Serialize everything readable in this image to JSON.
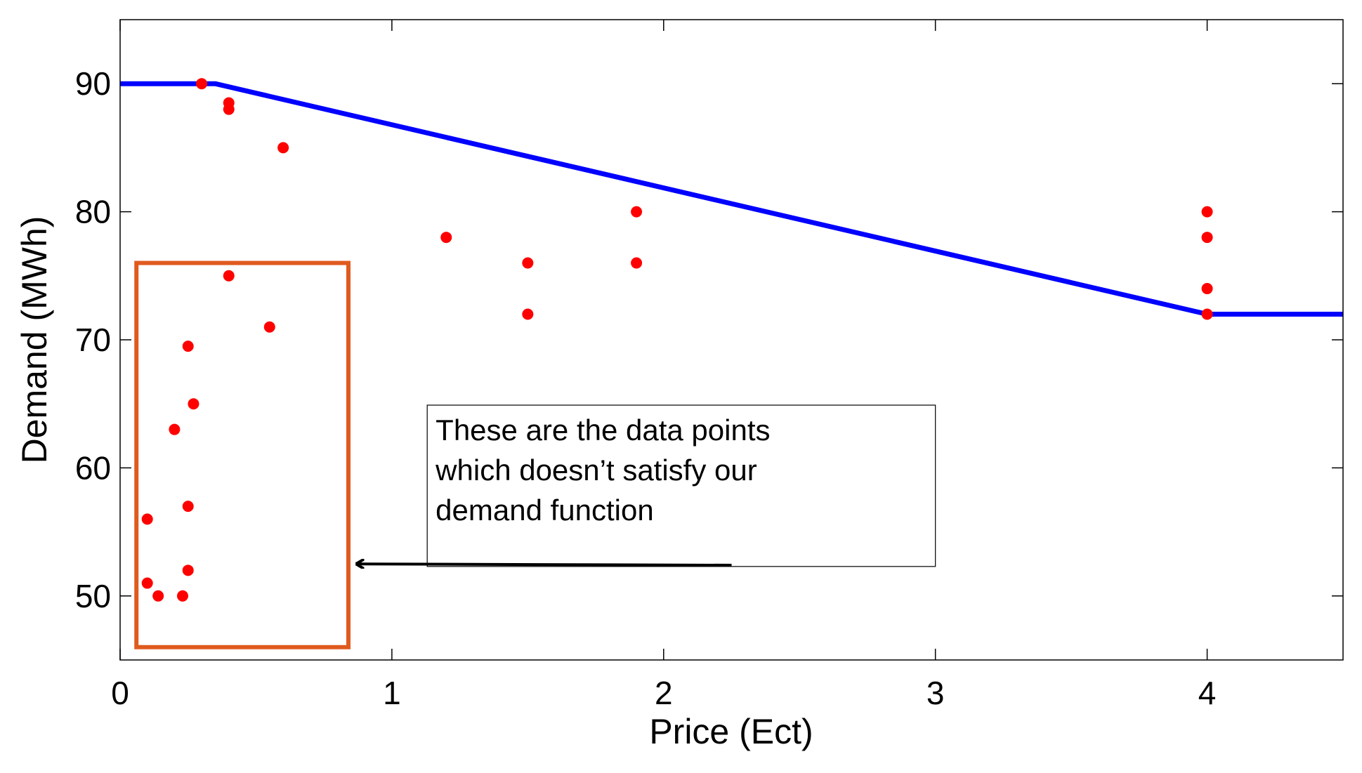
{
  "chart_data": {
    "type": "scatter",
    "title": "",
    "xlabel": "Price (Ect)",
    "ylabel": "Demand (MWh)",
    "xlim": [
      0,
      4.5
    ],
    "ylim": [
      45,
      95
    ],
    "xticks": [
      0,
      1,
      2,
      3,
      4
    ],
    "yticks": [
      50,
      60,
      70,
      80,
      90
    ],
    "grid": false,
    "colors": {
      "line": "#0000ff",
      "points": "#ff0000",
      "highlight_box": "#e05a1e",
      "arrow": "#000000"
    },
    "series": [
      {
        "type": "line",
        "points": [
          [
            0,
            90
          ],
          [
            0.35,
            90
          ],
          [
            4,
            72
          ],
          [
            4.5,
            72
          ]
        ]
      },
      {
        "type": "scatter",
        "points": [
          [
            0.3,
            90
          ],
          [
            0.4,
            88.5
          ],
          [
            0.4,
            88
          ],
          [
            0.6,
            85
          ],
          [
            1.2,
            78
          ],
          [
            1.5,
            76
          ],
          [
            1.5,
            72
          ],
          [
            1.9,
            80
          ],
          [
            1.9,
            76
          ],
          [
            4,
            80
          ],
          [
            4,
            78
          ],
          [
            4,
            74
          ],
          [
            4,
            72
          ],
          [
            0.4,
            75
          ],
          [
            0.55,
            71
          ],
          [
            0.25,
            69.5
          ],
          [
            0.27,
            65
          ],
          [
            0.2,
            63
          ],
          [
            0.1,
            56
          ],
          [
            0.25,
            57
          ],
          [
            0.25,
            52
          ],
          [
            0.1,
            51
          ],
          [
            0.14,
            50
          ],
          [
            0.23,
            50
          ]
        ]
      }
    ],
    "highlight_region": {
      "x": [
        0.06,
        0.84
      ],
      "y": [
        46,
        76
      ]
    },
    "annotation": {
      "lines": [
        "These are the data points",
        "which doesn’t satisfy our",
        "demand function"
      ],
      "arrow_from": [
        2.25,
        52.4
      ],
      "arrow_to": [
        0.87,
        52.5
      ],
      "box_x": [
        1.13,
        3.0
      ],
      "box_y": [
        52.3,
        64.9
      ]
    }
  }
}
